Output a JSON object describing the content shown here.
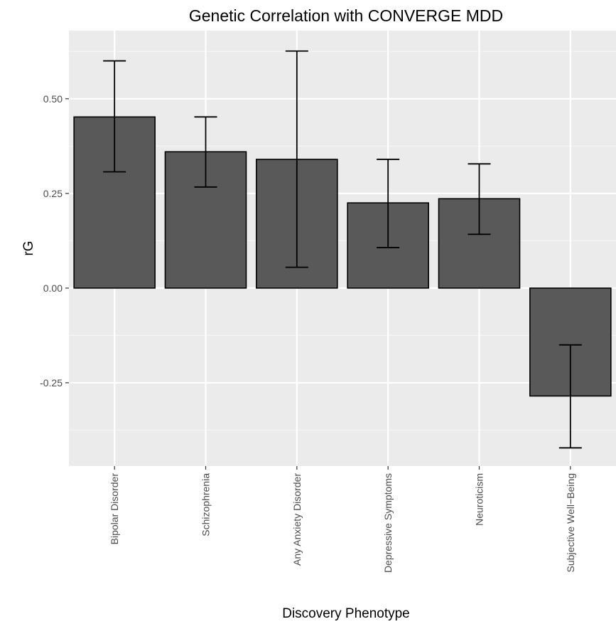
{
  "chart_data": {
    "type": "bar",
    "title": "Genetic Correlation with CONVERGE MDD",
    "xlabel": "Discovery Phenotype",
    "ylabel": "rG",
    "ylim": [
      -0.47,
      0.68
    ],
    "yticks": [
      -0.25,
      0.0,
      0.25,
      0.5
    ],
    "ytick_labels": [
      "-0.25",
      "0.00",
      "0.25",
      "0.50"
    ],
    "categories": [
      "Bipolar Disorder",
      "Schizophrenia",
      "Any Anxiety Disorder",
      "Depressive Symptoms",
      "Neuroticism",
      "Subjective Well−Being"
    ],
    "values": [
      0.452,
      0.36,
      0.34,
      0.225,
      0.236,
      -0.285
    ],
    "error_low": [
      0.307,
      0.267,
      0.055,
      0.107,
      0.142,
      -0.422
    ],
    "error_high": [
      0.6,
      0.452,
      0.626,
      0.34,
      0.328,
      -0.15
    ],
    "grid": true,
    "legend": "none",
    "colors": {
      "panel_background": "#ebebeb",
      "grid_major": "#ffffff",
      "grid_minor": "#f5f5f5",
      "bar_fill": "#595959",
      "bar_outline": "#000000",
      "errorbar": "#000000",
      "tick_label": "#4d4d4d",
      "text": "#000000"
    }
  }
}
